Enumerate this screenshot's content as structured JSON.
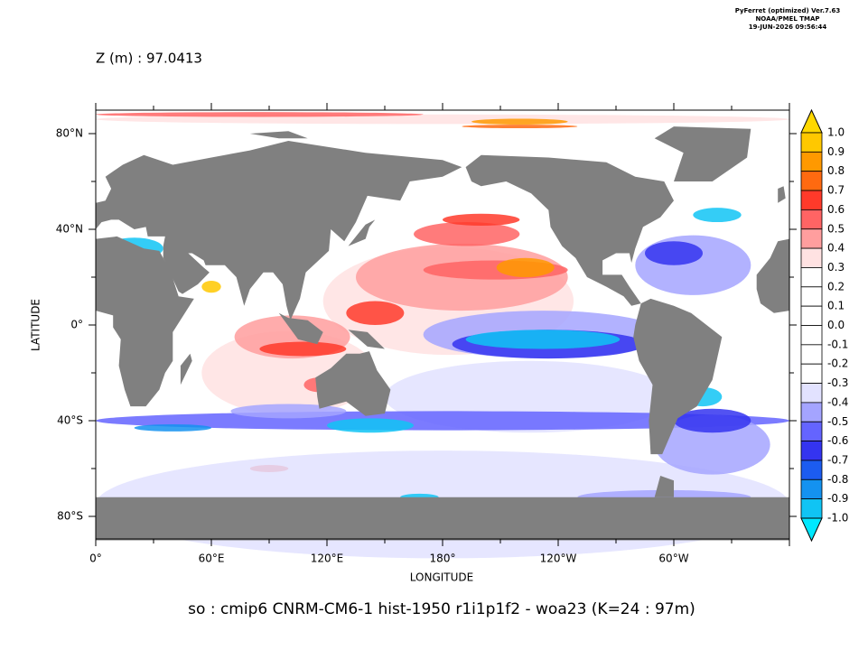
{
  "header": {
    "credits": [
      "PyFerret (optimized) Ver.7.63",
      "NOAA/PMEL TMAP",
      "19-JUN-2026 09:56:44"
    ],
    "subtitle": "Z (m) : 97.0413"
  },
  "map": {
    "y_label": "LATITUDE",
    "x_label": "LONGITUDE",
    "x_ticks": [
      "0°",
      "60°E",
      "120°E",
      "180°",
      "120°W",
      "60°W"
    ],
    "y_ticks": [
      "80°N",
      "40°N",
      "0°",
      "40°S",
      "80°S"
    ],
    "land_color": "#808080"
  },
  "colorbar": {
    "levels": [
      "1.0",
      "0.9",
      "0.8",
      "0.7",
      "0.6",
      "0.5",
      "0.4",
      "0.3",
      "0.2",
      "0.1",
      "0.0",
      "-0.1",
      "-0.2",
      "-0.3",
      "-0.4",
      "-0.5",
      "-0.6",
      "-0.7",
      "-0.8",
      "-0.9",
      "-1.0"
    ],
    "colors": [
      "#ffc800",
      "#ff9900",
      "#ff6a10",
      "#ff3a2a",
      "#ff6464",
      "#ff9e9e",
      "#ffe2e2",
      "#ffffff",
      "#ffffff",
      "#ffffff",
      "#ffffff",
      "#ffffff",
      "#ffffff",
      "#e2e2ff",
      "#a4a4ff",
      "#6464ff",
      "#3434f0",
      "#1c5cf0",
      "#1492f0",
      "#10c4f4"
    ],
    "over_color": "#ffd800",
    "under_color": "#00e8ff"
  },
  "footer": {
    "title": "so : cmip6 CNRM-CM6-1 hist-1950 r1i1p1f2 - woa23  (K=24 : 97m)"
  }
}
